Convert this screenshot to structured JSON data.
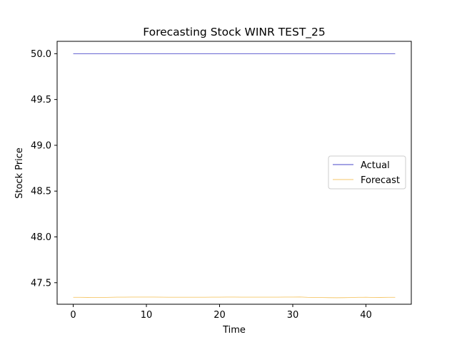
{
  "chart_data": {
    "type": "line",
    "title": "Forecasting Stock WINR TEST_25",
    "xlabel": "Time",
    "ylabel": "Stock Price",
    "xlim": [
      -2.2,
      46.2
    ],
    "ylim": [
      47.265,
      50.135
    ],
    "xticks": [
      0,
      10,
      20,
      30,
      40
    ],
    "yticks": [
      47.5,
      48.0,
      48.5,
      49.0,
      49.5,
      50.0
    ],
    "ytick_labels": [
      "47.5",
      "48.0",
      "48.5",
      "49.0",
      "49.5",
      "50.0"
    ],
    "grid": false,
    "legend_position": "center-right",
    "series": [
      {
        "name": "Actual",
        "color": "#4a47c8",
        "x": [
          0,
          1,
          2,
          3,
          4,
          5,
          6,
          7,
          8,
          9,
          10,
          11,
          12,
          13,
          14,
          15,
          16,
          17,
          18,
          19,
          20,
          21,
          22,
          23,
          24,
          25,
          26,
          27,
          28,
          29,
          30,
          31,
          32,
          33,
          34,
          35,
          36,
          37,
          38,
          39,
          40,
          41,
          42,
          43,
          44
        ],
        "values": [
          50,
          50,
          50,
          50,
          50,
          50,
          50,
          50,
          50,
          50,
          50,
          50,
          50,
          50,
          50,
          50,
          50,
          50,
          50,
          50,
          50,
          50,
          50,
          50,
          50,
          50,
          50,
          50,
          50,
          50,
          50,
          50,
          50,
          50,
          50,
          50,
          50,
          50,
          50,
          50,
          50,
          50,
          50,
          50,
          50
        ]
      },
      {
        "name": "Forecast",
        "color": "#f5c76a",
        "x": [
          0,
          1,
          2,
          3,
          4,
          5,
          6,
          7,
          8,
          9,
          10,
          11,
          12,
          13,
          14,
          15,
          16,
          17,
          18,
          19,
          20,
          21,
          22,
          23,
          24,
          25,
          26,
          27,
          28,
          29,
          30,
          31,
          32,
          33,
          34,
          35,
          36,
          37,
          38,
          39,
          40,
          41,
          42,
          43,
          44
        ],
        "values": [
          47.34,
          47.34,
          47.339,
          47.338,
          47.338,
          47.34,
          47.342,
          47.342,
          47.343,
          47.343,
          47.343,
          47.343,
          47.342,
          47.341,
          47.341,
          47.341,
          47.341,
          47.341,
          47.341,
          47.342,
          47.342,
          47.343,
          47.343,
          47.342,
          47.342,
          47.342,
          47.342,
          47.342,
          47.342,
          47.343,
          47.343,
          47.344,
          47.34,
          47.338,
          47.338,
          47.337,
          47.336,
          47.337,
          47.338,
          47.34,
          47.341,
          47.338,
          47.339,
          47.34,
          47.34
        ]
      }
    ]
  }
}
